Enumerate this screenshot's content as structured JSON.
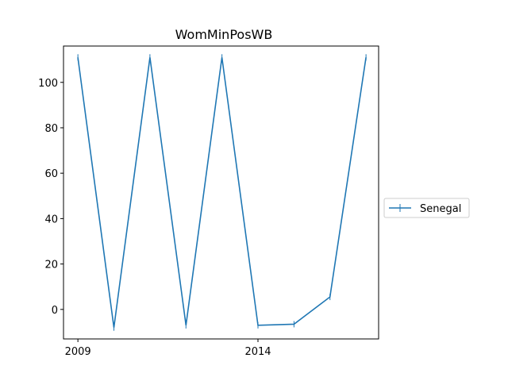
{
  "chart_data": {
    "type": "line",
    "title": "WomMinPosWB",
    "xlabel": "",
    "ylabel": "",
    "x": [
      2009,
      2010,
      2011,
      2012,
      2013,
      2014,
      2015,
      2016,
      2017
    ],
    "series": [
      {
        "name": "Senegal",
        "color": "#1f77b4",
        "values": [
          111.0,
          -8.0,
          111.0,
          -7.0,
          111.0,
          -7.0,
          -6.5,
          5.5,
          111.0
        ]
      }
    ],
    "xlim": [
      2008.6,
      2017.35
    ],
    "ylim": [
      -13,
      116
    ],
    "xticks": [
      2009,
      2014
    ],
    "yticks": [
      0,
      20,
      40,
      60,
      80,
      100
    ],
    "legend_position": "right-outside",
    "grid": false,
    "marker": "vertical-tick"
  }
}
